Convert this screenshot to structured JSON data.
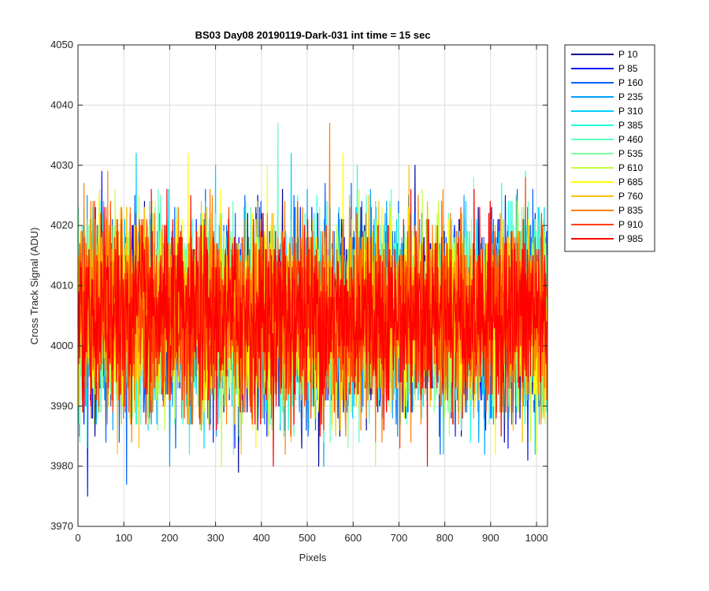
{
  "chart_data": {
    "type": "line",
    "title": "BS03 Day08 20190119-Dark-031 int time = 15 sec",
    "xlabel": "Pixels",
    "ylabel": "Cross Track Signal (ADU)",
    "xlim": [
      0,
      1024
    ],
    "ylim": [
      3970,
      4050
    ],
    "xticks": [
      0,
      100,
      200,
      300,
      400,
      500,
      600,
      700,
      800,
      900,
      1000
    ],
    "yticks": [
      3970,
      3980,
      3990,
      4000,
      4010,
      4020,
      4030,
      4040,
      4050
    ],
    "grid": true,
    "legend_position": "outside-right-top",
    "noise": {
      "mean": 4005,
      "sigma": 7.5,
      "min": 3972,
      "max": 4041,
      "n_points": 1024
    },
    "series": [
      {
        "name": "P 10",
        "color": "#00008f"
      },
      {
        "name": "P 85",
        "color": "#0010ff"
      },
      {
        "name": "P 160",
        "color": "#0060ff"
      },
      {
        "name": "P 235",
        "color": "#00a0ff"
      },
      {
        "name": "P 310",
        "color": "#00cfff"
      },
      {
        "name": "P 385",
        "color": "#20ffdf"
      },
      {
        "name": "P 460",
        "color": "#60ffbf"
      },
      {
        "name": "P 535",
        "color": "#80ff9f"
      },
      {
        "name": "P 610",
        "color": "#bfff40"
      },
      {
        "name": "P 685",
        "color": "#ffff00"
      },
      {
        "name": "P 760",
        "color": "#ffbf00"
      },
      {
        "name": "P 835",
        "color": "#ff8000"
      },
      {
        "name": "P 910",
        "color": "#ff4000"
      },
      {
        "name": "P 985",
        "color": "#ff0000"
      }
    ]
  }
}
